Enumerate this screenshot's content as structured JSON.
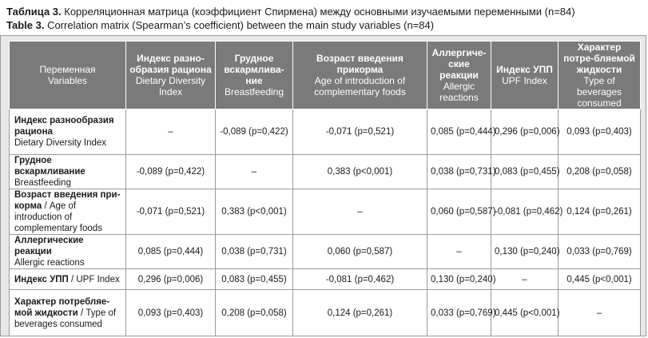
{
  "caption": {
    "ru_prefix": "Таблица 3.",
    "ru_text": " Корреляционная матрица (коэффициент Спирмена) между основными изучаемыми переменными (n=84)",
    "en_prefix": "Table 3.",
    "en_text": " Correlation matrix (Spearman’s coefficient) between the main study variables (n=84)"
  },
  "header": [
    {
      "ru": "Переменная",
      "en": "Variables"
    },
    {
      "ru": "Индекс разно-образия рациона",
      "en": "Dietary Diversity Index"
    },
    {
      "ru": "Грудное вскармлива-ние",
      "en": "Breastfeeding"
    },
    {
      "ru": "Возраст введения прикорма",
      "en": "Age of introduction of complementary foods"
    },
    {
      "ru": "Аллергиче-ские реакции",
      "en": "Allergic reactions"
    },
    {
      "ru": "Индекс УПП",
      "en": "UPF Index"
    },
    {
      "ru": "Характер потре-бляемой жидкости",
      "en": "Type of beverages consumed"
    }
  ],
  "rows": [
    {
      "label_ru": "Индекс разнообразия рациона",
      "label_en": "Dietary Diversity Index",
      "cells": [
        "–",
        "-0,089 (p=0,422)",
        "-0,071 (p=0,521)",
        "0,085 (p=0,444)",
        "0,296 (p=0,006)",
        "0,093 (p=0,403)"
      ]
    },
    {
      "label_ru": "Грудное вскармливание",
      "label_en": "Breastfeeding",
      "cells": [
        "-0,089 (p=0,422)",
        "–",
        "0,383 (p<0,001)",
        "0,038 (p=0,731)",
        "0,083 (p=0,455)",
        "0,208 (p=0,058)"
      ]
    },
    {
      "label_ru": "Возраст введения при-корма",
      "label_en": " / Age of introduction of complementary foods",
      "cells": [
        "-0,071 (p=0,521)",
        "0,383 (p<0,001)",
        "–",
        "0,060 (p=0,587)",
        "-0,081 (p=0,462)",
        "0,124 (p=0,261)"
      ]
    },
    {
      "label_ru": "Аллергические реакции",
      "label_en": "Allergic reactions",
      "cells": [
        "0,085 (p=0,444)",
        "0,038 (p=0,731)",
        "0,060 (p=0,587)",
        "–",
        "0,130 (p=0,240)",
        "0,033 (p=0,769)"
      ]
    },
    {
      "label_ru": "Индекс УПП",
      "label_en": " / UPF Index",
      "cells": [
        "0,296 (p=0,006)",
        "0,083 (p=0,455)",
        "-0,081 (p=0,462)",
        "0,130 (p=0,240)",
        "–",
        "0,445 (p<0,001)"
      ]
    },
    {
      "label_ru": "Характер потребляе-мой жидкости",
      "label_en": " / Type of beverages consumed",
      "cells": [
        "0,093 (p=0,403)",
        "0,208 (p=0,058)",
        "0,124 (p=0,261)",
        "0,033 (p=0,769)",
        "0,445 (p<0,001)",
        "–"
      ]
    }
  ]
}
